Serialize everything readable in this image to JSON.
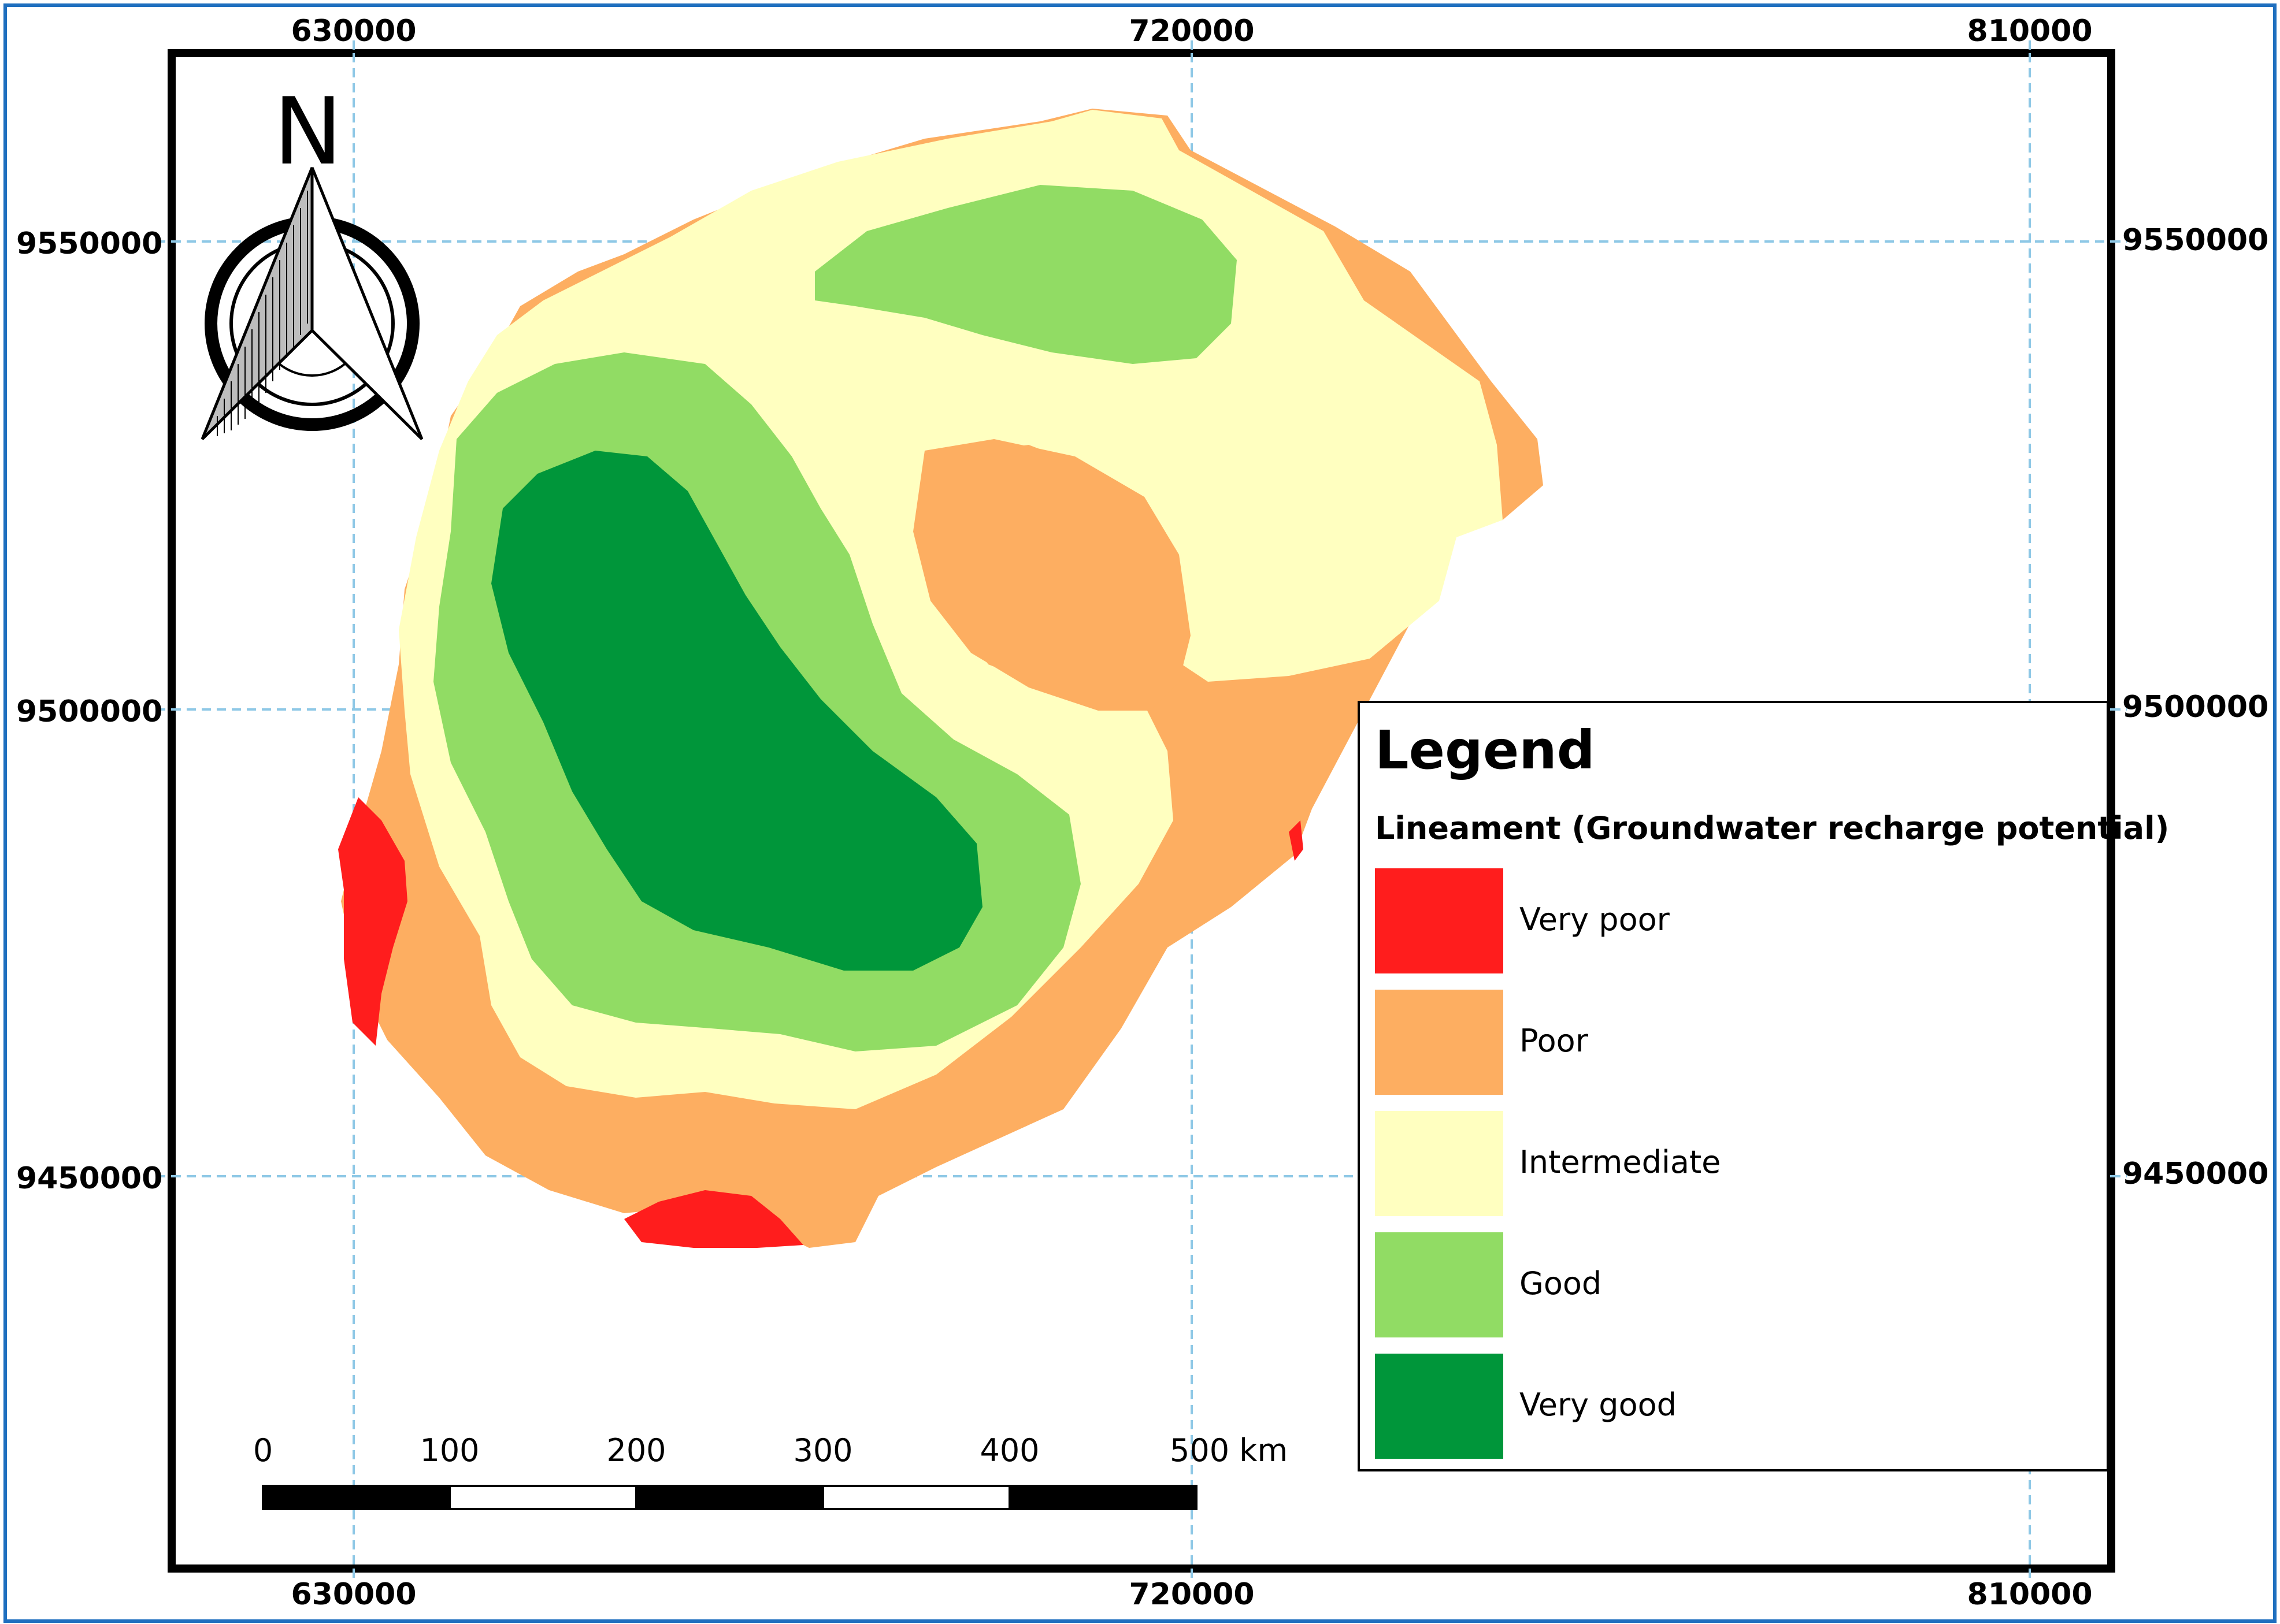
{
  "colors": {
    "very_poor": "#ff1d1d",
    "poor": "#fdae61",
    "intermediate": "#ffffc0",
    "good": "#91dc64",
    "very_good": "#00963a",
    "grid": "#8ec8e6",
    "border": "#1f6fbf"
  },
  "axes": {
    "top_x": [
      "630000",
      "720000",
      "810000"
    ],
    "bottom_x": [
      "630000",
      "720000",
      "810000"
    ],
    "left_y": [
      "9550000",
      "9500000",
      "9450000"
    ],
    "right_y": [
      "9550000",
      "9500000",
      "9450000"
    ]
  },
  "north_arrow": {
    "letter": "N",
    "icon": "north-arrow-icon"
  },
  "legend": {
    "title": "Legend",
    "subtitle": "Lineament (Groundwater recharge potential)",
    "items": [
      {
        "label": "Very poor",
        "color": "#ff1d1d"
      },
      {
        "label": "Poor",
        "color": "#fdae61"
      },
      {
        "label": "Intermediate",
        "color": "#ffffc0"
      },
      {
        "label": "Good",
        "color": "#91dc64"
      },
      {
        "label": "Very good",
        "color": "#00963a"
      }
    ]
  },
  "scale_bar": {
    "labels": [
      "0",
      "100",
      "200",
      "300",
      "400",
      "500 km"
    ]
  }
}
